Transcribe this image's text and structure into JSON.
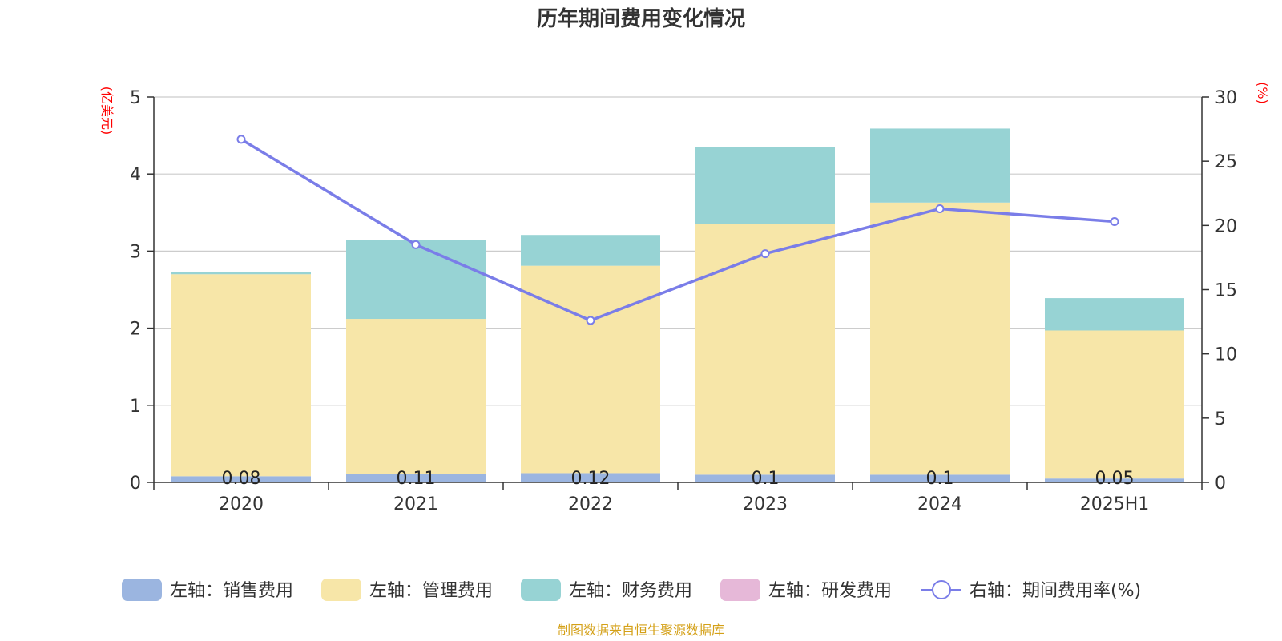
{
  "chart_data": {
    "type": "bar",
    "title": "历年期间费用变化情况",
    "y_left_unit": "(亿美元)",
    "y_right_unit": "(%)",
    "categories": [
      "2020",
      "2021",
      "2022",
      "2023",
      "2024",
      "2025H1"
    ],
    "y_left_ticks": [
      "0",
      "1",
      "2",
      "3",
      "4",
      "5"
    ],
    "y_right_ticks": [
      "0",
      "5",
      "10",
      "15",
      "20",
      "25",
      "30"
    ],
    "ylim_left": [
      0,
      5
    ],
    "ylim_right": [
      0,
      30
    ],
    "stacked": true,
    "grid": true,
    "legend_position": "bottom",
    "series": [
      {
        "name": "左轴：销售费用",
        "axis": "left",
        "kind": "bar",
        "color": "#9bb5e0",
        "values": [
          0.08,
          0.11,
          0.12,
          0.1,
          0.1,
          0.05
        ],
        "labels": [
          "0.08",
          "0.11",
          "0.12",
          "0.1",
          "0.1",
          "0.05"
        ]
      },
      {
        "name": "左轴：管理费用",
        "axis": "left",
        "kind": "bar",
        "color": "#f7e6a8",
        "values": [
          2.62,
          2.01,
          2.69,
          3.25,
          3.53,
          1.92
        ]
      },
      {
        "name": "左轴：财务费用",
        "axis": "left",
        "kind": "bar",
        "color": "#97d3d4",
        "values": [
          0.03,
          1.02,
          0.4,
          1.0,
          0.96,
          0.42
        ]
      },
      {
        "name": "左轴：研发费用",
        "axis": "left",
        "kind": "bar",
        "color": "#e6b8d8",
        "values": [
          0,
          0,
          0,
          0,
          0,
          0
        ]
      },
      {
        "name": "右轴：期间费用率(%)",
        "axis": "right",
        "kind": "line",
        "color": "#7a7de8",
        "values": [
          26.7,
          18.5,
          12.6,
          17.8,
          21.3,
          20.3
        ]
      }
    ]
  },
  "footer": {
    "source": "制图数据来自恒生聚源数据库"
  }
}
